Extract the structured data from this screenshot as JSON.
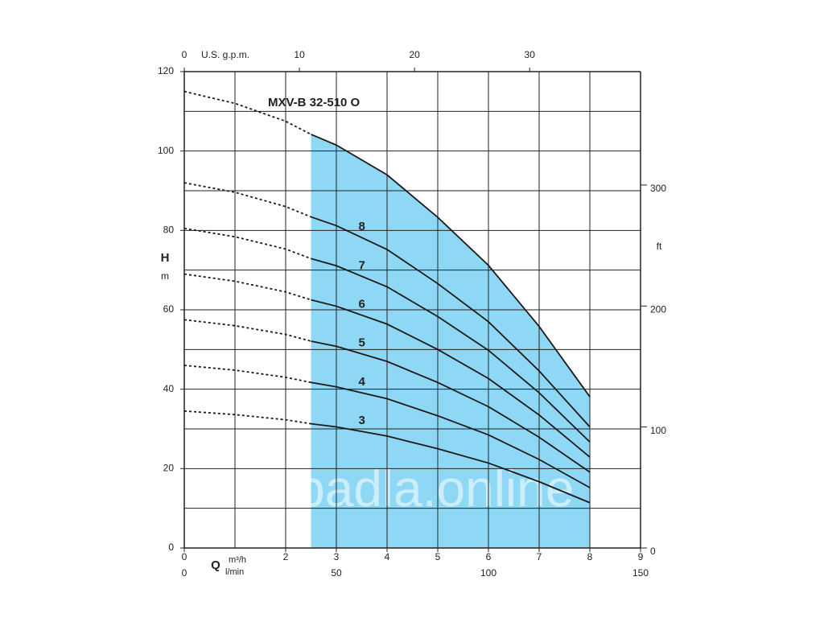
{
  "chart_data": {
    "type": "line",
    "title": "MXV-B 32-510 O",
    "x": [
      0,
      1,
      2,
      2.5,
      3,
      4,
      5,
      6,
      7,
      8
    ],
    "series": [
      {
        "values": [
          115,
          112,
          107.5,
          104.2,
          101.5,
          94,
          83.3,
          71.2,
          55.8,
          38.1
        ]
      },
      {
        "name": "8",
        "values": [
          92,
          89.6,
          86,
          83.4,
          81.2,
          75.2,
          66.6,
          57,
          44.6,
          30.5
        ]
      },
      {
        "name": "7",
        "values": [
          80.5,
          78.4,
          75.3,
          72.9,
          71.1,
          65.8,
          58.3,
          49.8,
          39.1,
          26.7
        ]
      },
      {
        "name": "6",
        "values": [
          69,
          67.2,
          64.5,
          62.5,
          60.9,
          56.4,
          50,
          42.7,
          33.5,
          22.9
        ]
      },
      {
        "name": "5",
        "values": [
          57.5,
          56,
          53.8,
          52.1,
          50.8,
          47,
          41.7,
          35.6,
          27.9,
          19.1
        ]
      },
      {
        "name": "4",
        "values": [
          46,
          44.8,
          43,
          41.7,
          40.6,
          37.6,
          33.3,
          28.5,
          22.3,
          15.2
        ]
      },
      {
        "name": "3",
        "values": [
          34.5,
          33.6,
          32.3,
          31.3,
          30.5,
          28.2,
          25,
          21.4,
          16.7,
          11.4
        ]
      }
    ],
    "operating_range": [
      2.5,
      8
    ],
    "fill_color": "#8fd8f5",
    "xlim": [
      0,
      9
    ],
    "xticks": [
      0,
      2,
      3,
      4,
      5,
      6,
      7,
      8,
      9
    ],
    "xgrid_step": 1,
    "ylim": [
      0,
      120
    ],
    "yticks": [
      0,
      20,
      40,
      60,
      80,
      100,
      120
    ],
    "ygrid_step": 10,
    "x_label": "Q",
    "x_unit": "m³/h",
    "x2_label": "U.S. g.p.m.",
    "x2lim": [
      0,
      39.63
    ],
    "x2ticks": [
      0,
      10,
      20,
      30
    ],
    "x3_unit": "l/min",
    "x3lim": [
      0,
      150
    ],
    "x3ticks": [
      0,
      50,
      100,
      150
    ],
    "y_label": "H",
    "y_unit": "m",
    "y2_unit": "ft",
    "y2lim": [
      0,
      393.7
    ],
    "y2ticks": [
      0,
      100,
      200,
      300
    ],
    "watermark": "Čerpadla.online"
  }
}
